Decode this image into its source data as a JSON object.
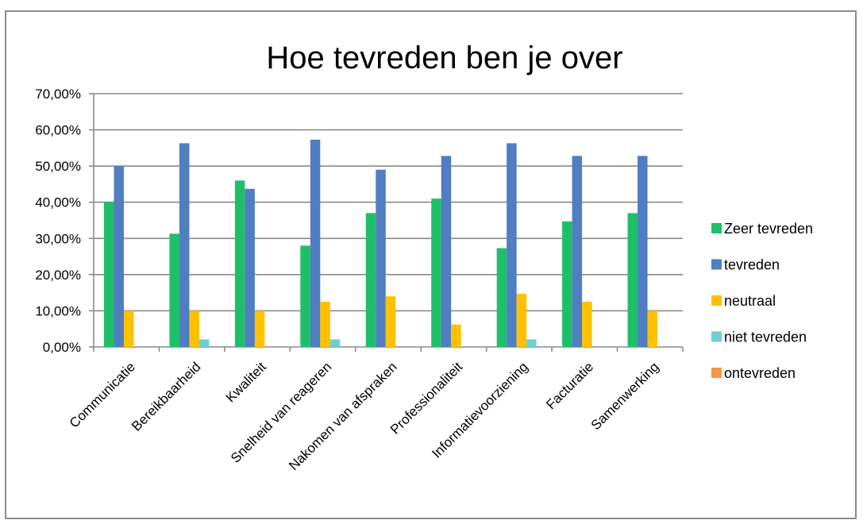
{
  "chart_data": {
    "type": "bar",
    "title": "Hoe tevreden ben je over",
    "xlabel": "",
    "ylabel": "",
    "ylim": [
      0,
      0.7
    ],
    "y_ticks": [
      "0,00%",
      "10,00%",
      "20,00%",
      "30,00%",
      "40,00%",
      "50,00%",
      "60,00%",
      "70,00%"
    ],
    "grid": true,
    "legend_position": "right",
    "categories": [
      "Communicatie",
      "Bereikbaarheid",
      "Kwaliteit",
      "Snelheid van reageren",
      "Nakomen van afspraken",
      "Professionaliteit",
      "Informatievoorziening",
      "Facturatie",
      "Samenwerking"
    ],
    "series": [
      {
        "name": "Zeer tevreden",
        "color": "#1fbf6a",
        "values": [
          0.4,
          0.313,
          0.46,
          0.28,
          0.37,
          0.41,
          0.273,
          0.347,
          0.37
        ]
      },
      {
        "name": "tevreden",
        "color": "#4f7ec1",
        "values": [
          0.5,
          0.563,
          0.437,
          0.573,
          0.49,
          0.528,
          0.563,
          0.528,
          0.528
        ]
      },
      {
        "name": "neutraal",
        "color": "#ffc000",
        "values": [
          0.1,
          0.1,
          0.1,
          0.125,
          0.14,
          0.062,
          0.147,
          0.125,
          0.1
        ]
      },
      {
        "name": "niet tevreden",
        "color": "#6fcfcf",
        "values": [
          0,
          0.021,
          0,
          0.021,
          0,
          0,
          0.021,
          0,
          0
        ]
      },
      {
        "name": "ontevreden",
        "color": "#f79646",
        "values": [
          0,
          0,
          0,
          0,
          0,
          0,
          0,
          0,
          0
        ]
      }
    ]
  }
}
